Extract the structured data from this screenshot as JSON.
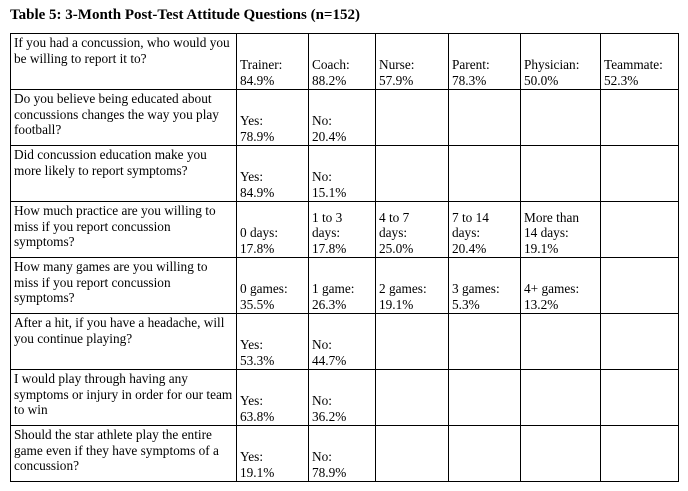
{
  "caption": "Table 5: 3-Month Post-Test Attitude Questions (n=152)",
  "rows": [
    {
      "question": "If you had a concussion, who would you be willing to report it to?",
      "answers": [
        {
          "label": "Trainer:",
          "value": "84.9%"
        },
        {
          "label": "Coach:",
          "value": "88.2%"
        },
        {
          "label": "Nurse:",
          "value": "57.9%"
        },
        {
          "label": "Parent:",
          "value": "78.3%"
        },
        {
          "label": "Physician:",
          "value": "50.0%"
        },
        {
          "label": "Teammate:",
          "value": "52.3%"
        }
      ]
    },
    {
      "question": "Do you believe being educated about concussions changes the way you play football?",
      "answers": [
        {
          "label": "Yes:",
          "value": "78.9%"
        },
        {
          "label": "No:",
          "value": "20.4%"
        },
        {
          "label": "",
          "value": ""
        },
        {
          "label": "",
          "value": ""
        },
        {
          "label": "",
          "value": ""
        },
        {
          "label": "",
          "value": ""
        }
      ]
    },
    {
      "question": "Did concussion education make you more likely to report symptoms?",
      "answers": [
        {
          "label": "Yes:",
          "value": "84.9%"
        },
        {
          "label": "No:",
          "value": "15.1%"
        },
        {
          "label": "",
          "value": ""
        },
        {
          "label": "",
          "value": ""
        },
        {
          "label": "",
          "value": ""
        },
        {
          "label": "",
          "value": ""
        }
      ]
    },
    {
      "question": "How much practice are you willing to miss if you report concussion symptoms?",
      "answers": [
        {
          "label": "0 days:",
          "value": "17.8%"
        },
        {
          "label": "1 to 3\ndays:",
          "value": "17.8%"
        },
        {
          "label": "4 to 7\ndays:",
          "value": "25.0%"
        },
        {
          "label": "7 to 14\ndays:",
          "value": "20.4%"
        },
        {
          "label": "More than\n14 days:",
          "value": "19.1%"
        },
        {
          "label": "",
          "value": ""
        }
      ]
    },
    {
      "question": "How many games are you willing to miss if you report concussion symptoms?",
      "answers": [
        {
          "label": "0 games:",
          "value": "35.5%"
        },
        {
          "label": "1 game:",
          "value": "26.3%"
        },
        {
          "label": "2 games:",
          "value": "19.1%"
        },
        {
          "label": "3 games:",
          "value": "5.3%"
        },
        {
          "label": "4+ games:",
          "value": "13.2%"
        },
        {
          "label": "",
          "value": ""
        }
      ]
    },
    {
      "question": "After a hit, if you have a headache, will you continue playing?",
      "answers": [
        {
          "label": "Yes:",
          "value": "53.3%"
        },
        {
          "label": "No:",
          "value": "44.7%"
        },
        {
          "label": "",
          "value": ""
        },
        {
          "label": "",
          "value": ""
        },
        {
          "label": "",
          "value": ""
        },
        {
          "label": "",
          "value": ""
        }
      ]
    },
    {
      "question": "I would play through having any symptoms or injury in order for our team to win",
      "answers": [
        {
          "label": "Yes:",
          "value": "63.8%"
        },
        {
          "label": "No:",
          "value": "36.2%"
        },
        {
          "label": "",
          "value": ""
        },
        {
          "label": "",
          "value": ""
        },
        {
          "label": "",
          "value": ""
        },
        {
          "label": "",
          "value": ""
        }
      ]
    },
    {
      "question": "Should the star athlete play the entire game even if they have symptoms of a concussion?",
      "answers": [
        {
          "label": "Yes:",
          "value": "19.1%"
        },
        {
          "label": "No:",
          "value": "78.9%"
        },
        {
          "label": "",
          "value": ""
        },
        {
          "label": "",
          "value": ""
        },
        {
          "label": "",
          "value": ""
        },
        {
          "label": "",
          "value": ""
        }
      ]
    }
  ]
}
